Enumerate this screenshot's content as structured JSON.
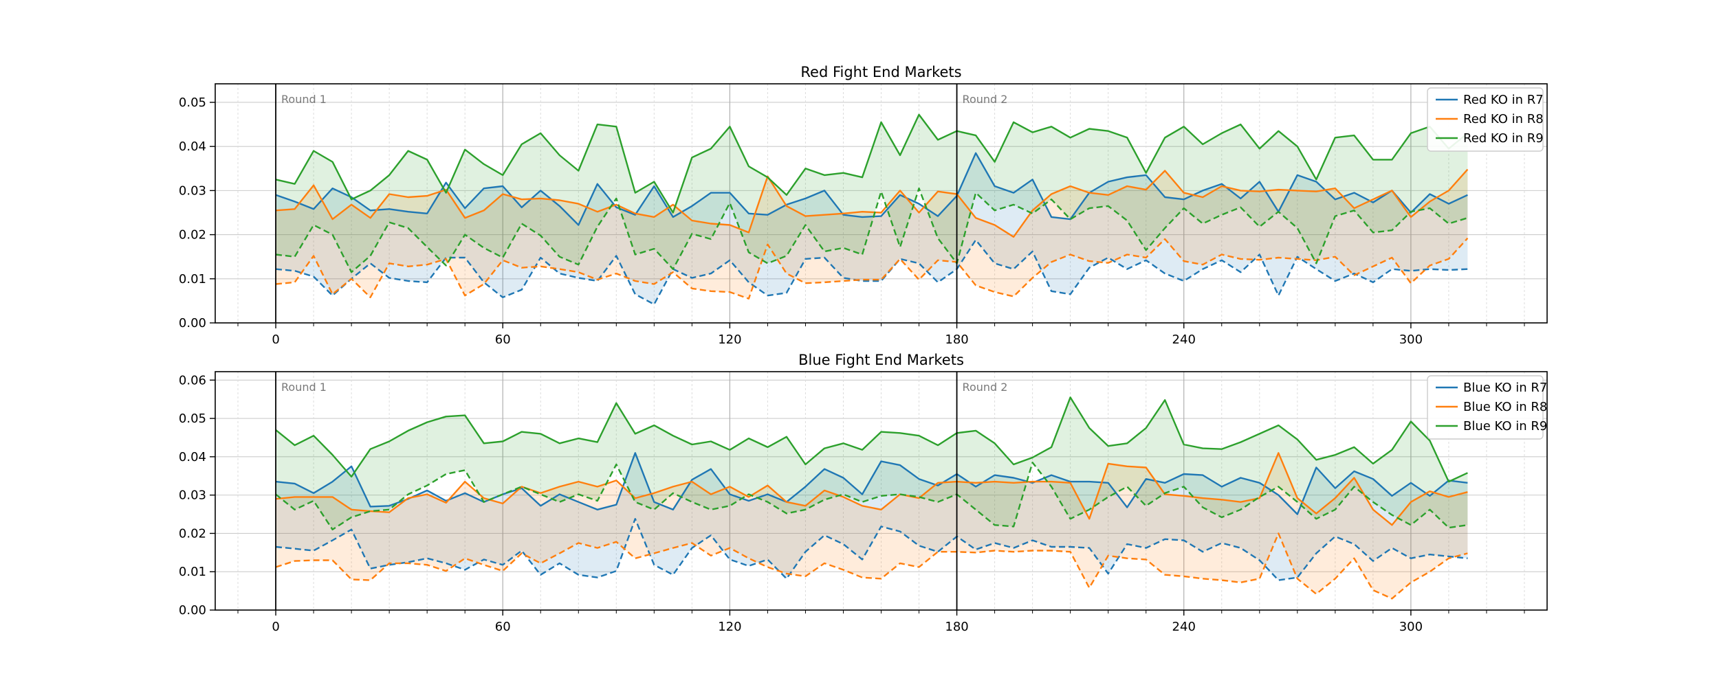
{
  "figure": {
    "background": "#ffffff",
    "accent_colors": {
      "blue": "#1f77b4",
      "orange": "#ff7f0e",
      "green": "#2ca02c"
    }
  },
  "chart_data": [
    {
      "type": "line",
      "title": "Red Fight End Markets",
      "x_start": 0,
      "x_step": 5,
      "xlim": [
        -16,
        336
      ],
      "ylim": [
        0,
        0.0542
      ],
      "grid": true,
      "legend_position": "upper right",
      "xticks": [
        0,
        60,
        120,
        180,
        240,
        300
      ],
      "yticks": [
        "0.00",
        "0.01",
        "0.02",
        "0.03",
        "0.04",
        "0.05"
      ],
      "vlines": [
        {
          "x": 0,
          "label": "Round 1"
        },
        {
          "x": 180,
          "label": "Round 2"
        }
      ],
      "series": [
        {
          "name": "Red KO in R7",
          "color": "#1f77b4",
          "upper": [
            0.029,
            0.0275,
            0.0258,
            0.0305,
            0.0285,
            0.0255,
            0.0258,
            0.0252,
            0.0248,
            0.0318,
            0.026,
            0.0305,
            0.031,
            0.0262,
            0.03,
            0.0265,
            0.0222,
            0.0315,
            0.0262,
            0.0245,
            0.031,
            0.024,
            0.0265,
            0.0295,
            0.0295,
            0.0248,
            0.0245,
            0.0268,
            0.0282,
            0.03,
            0.0245,
            0.024,
            0.0242,
            0.029,
            0.027,
            0.0242,
            0.0288,
            0.0385,
            0.031,
            0.0295,
            0.0325,
            0.024,
            0.0235,
            0.0295,
            0.032,
            0.033,
            0.0335,
            0.0285,
            0.028,
            0.03,
            0.0315,
            0.0282,
            0.032,
            0.0252,
            0.0335,
            0.032,
            0.028,
            0.0295,
            0.0273,
            0.03,
            0.025,
            0.0292,
            0.027,
            0.029
          ],
          "lower": [
            0.0122,
            0.0118,
            0.0105,
            0.0062,
            0.01,
            0.0135,
            0.0102,
            0.0095,
            0.0092,
            0.0148,
            0.0148,
            0.0092,
            0.0058,
            0.0075,
            0.0148,
            0.0112,
            0.0102,
            0.0095,
            0.0152,
            0.0065,
            0.0042,
            0.0122,
            0.0102,
            0.0112,
            0.0142,
            0.0092,
            0.0062,
            0.0068,
            0.0145,
            0.0148,
            0.0102,
            0.0095,
            0.0095,
            0.0145,
            0.0135,
            0.0092,
            0.0122,
            0.0188,
            0.0135,
            0.0122,
            0.0162,
            0.0072,
            0.0065,
            0.0125,
            0.0148,
            0.0122,
            0.0142,
            0.0112,
            0.0095,
            0.0122,
            0.0142,
            0.0115,
            0.0155,
            0.0062,
            0.015,
            0.0122,
            0.0095,
            0.0112,
            0.0092,
            0.0122,
            0.0118,
            0.0122,
            0.012,
            0.0122
          ]
        },
        {
          "name": "Red KO in R8",
          "color": "#ff7f0e",
          "upper": [
            0.0255,
            0.0258,
            0.0312,
            0.0235,
            0.0268,
            0.0238,
            0.0292,
            0.0285,
            0.0288,
            0.0302,
            0.0238,
            0.0255,
            0.0292,
            0.028,
            0.0282,
            0.0278,
            0.027,
            0.0252,
            0.0268,
            0.0248,
            0.024,
            0.0268,
            0.0232,
            0.0225,
            0.0222,
            0.0205,
            0.0332,
            0.0265,
            0.0242,
            0.0245,
            0.0248,
            0.0252,
            0.025,
            0.03,
            0.025,
            0.0298,
            0.0292,
            0.0238,
            0.0222,
            0.0195,
            0.0255,
            0.0292,
            0.031,
            0.0295,
            0.029,
            0.031,
            0.0302,
            0.0345,
            0.0295,
            0.0285,
            0.031,
            0.03,
            0.0298,
            0.0302,
            0.03,
            0.0298,
            0.0305,
            0.026,
            0.028,
            0.03,
            0.024,
            0.0275,
            0.03,
            0.0348
          ],
          "lower": [
            0.0088,
            0.0092,
            0.0152,
            0.0065,
            0.01,
            0.0058,
            0.0135,
            0.0128,
            0.0132,
            0.0145,
            0.0062,
            0.0088,
            0.0142,
            0.0125,
            0.0128,
            0.0122,
            0.0115,
            0.0098,
            0.0112,
            0.0095,
            0.0088,
            0.0115,
            0.0078,
            0.0072,
            0.007,
            0.0055,
            0.0178,
            0.0112,
            0.009,
            0.0092,
            0.0095,
            0.0098,
            0.0098,
            0.0145,
            0.0098,
            0.0142,
            0.0138,
            0.0085,
            0.007,
            0.006,
            0.0102,
            0.0138,
            0.0155,
            0.014,
            0.0136,
            0.0155,
            0.0148,
            0.019,
            0.014,
            0.0132,
            0.0155,
            0.0145,
            0.0143,
            0.0148,
            0.0145,
            0.0142,
            0.015,
            0.0108,
            0.0128,
            0.0148,
            0.009,
            0.013,
            0.0145,
            0.0192
          ]
        },
        {
          "name": "Red KO in R9",
          "color": "#2ca02c",
          "upper": [
            0.0325,
            0.0315,
            0.039,
            0.0365,
            0.028,
            0.03,
            0.0335,
            0.039,
            0.037,
            0.0295,
            0.0393,
            0.036,
            0.0335,
            0.0405,
            0.043,
            0.038,
            0.0345,
            0.045,
            0.0445,
            0.0295,
            0.032,
            0.025,
            0.0375,
            0.0395,
            0.0445,
            0.0355,
            0.033,
            0.029,
            0.035,
            0.0335,
            0.034,
            0.033,
            0.0455,
            0.038,
            0.0472,
            0.0415,
            0.0435,
            0.0425,
            0.0365,
            0.0455,
            0.0432,
            0.0445,
            0.042,
            0.044,
            0.0435,
            0.042,
            0.034,
            0.042,
            0.0445,
            0.0405,
            0.043,
            0.045,
            0.0395,
            0.0435,
            0.04,
            0.0325,
            0.042,
            0.0425,
            0.037,
            0.037,
            0.043,
            0.0445,
            0.0395,
            0.043
          ],
          "lower": [
            0.0155,
            0.015,
            0.0222,
            0.02,
            0.0115,
            0.0152,
            0.0228,
            0.0215,
            0.0172,
            0.013,
            0.02,
            0.017,
            0.0148,
            0.0225,
            0.0198,
            0.015,
            0.0132,
            0.0218,
            0.0282,
            0.0155,
            0.0168,
            0.0122,
            0.0202,
            0.019,
            0.0272,
            0.016,
            0.0135,
            0.0152,
            0.0222,
            0.0162,
            0.017,
            0.0155,
            0.0298,
            0.0172,
            0.0305,
            0.0192,
            0.0135,
            0.0295,
            0.0255,
            0.0268,
            0.0248,
            0.028,
            0.0235,
            0.026,
            0.0265,
            0.0232,
            0.0165,
            0.0215,
            0.026,
            0.0225,
            0.0245,
            0.0262,
            0.0218,
            0.0252,
            0.0215,
            0.0135,
            0.0242,
            0.0255,
            0.0205,
            0.021,
            0.0252,
            0.026,
            0.0225,
            0.0238
          ]
        }
      ]
    },
    {
      "type": "line",
      "title": "Blue Fight End Markets",
      "x_start": 0,
      "x_step": 5,
      "xlim": [
        -16,
        336
      ],
      "ylim": [
        0,
        0.0622
      ],
      "grid": true,
      "legend_position": "upper right",
      "xticks": [
        0,
        60,
        120,
        180,
        240,
        300
      ],
      "yticks": [
        "0.00",
        "0.01",
        "0.02",
        "0.03",
        "0.04",
        "0.05",
        "0.06"
      ],
      "vlines": [
        {
          "x": 0,
          "label": "Round 1"
        },
        {
          "x": 180,
          "label": "Round 2"
        }
      ],
      "series": [
        {
          "name": "Blue KO in R7",
          "color": "#1f77b4",
          "upper": [
            0.0335,
            0.033,
            0.0305,
            0.0335,
            0.0375,
            0.027,
            0.0272,
            0.029,
            0.0312,
            0.0285,
            0.0305,
            0.0282,
            0.0302,
            0.0318,
            0.0272,
            0.0302,
            0.0282,
            0.0262,
            0.0275,
            0.041,
            0.0282,
            0.0262,
            0.034,
            0.0368,
            0.0302,
            0.0285,
            0.0302,
            0.0282,
            0.0322,
            0.0368,
            0.0345,
            0.0302,
            0.0388,
            0.0378,
            0.0342,
            0.0325,
            0.0355,
            0.0322,
            0.0352,
            0.0345,
            0.0332,
            0.0352,
            0.0335,
            0.0335,
            0.0332,
            0.0268,
            0.0342,
            0.0332,
            0.0355,
            0.0352,
            0.0322,
            0.0345,
            0.0332,
            0.03,
            0.025,
            0.0372,
            0.0318,
            0.0362,
            0.0342,
            0.0298,
            0.0332,
            0.0298,
            0.0338,
            0.0332
          ],
          "lower": [
            0.0165,
            0.016,
            0.0155,
            0.0182,
            0.021,
            0.0108,
            0.0118,
            0.0125,
            0.0135,
            0.0122,
            0.0105,
            0.0132,
            0.0118,
            0.0155,
            0.0092,
            0.0122,
            0.0092,
            0.0085,
            0.0102,
            0.0238,
            0.0118,
            0.0092,
            0.0162,
            0.0195,
            0.0132,
            0.0115,
            0.0132,
            0.0082,
            0.0152,
            0.0195,
            0.0172,
            0.0132,
            0.0218,
            0.0205,
            0.0168,
            0.0152,
            0.0192,
            0.0158,
            0.0175,
            0.0162,
            0.0182,
            0.0165,
            0.0165,
            0.0162,
            0.0095,
            0.0172,
            0.0162,
            0.0185,
            0.0182,
            0.0152,
            0.0175,
            0.0162,
            0.013,
            0.0078,
            0.0085,
            0.0148,
            0.0192,
            0.0172,
            0.0128,
            0.0162,
            0.0135,
            0.0145,
            0.014,
            0.0135
          ]
        },
        {
          "name": "Blue KO in R8",
          "color": "#ff7f0e",
          "upper": [
            0.029,
            0.0295,
            0.0295,
            0.0295,
            0.0262,
            0.0258,
            0.0255,
            0.0292,
            0.0302,
            0.028,
            0.0335,
            0.0292,
            0.0278,
            0.0322,
            0.0305,
            0.0322,
            0.0335,
            0.0322,
            0.0338,
            0.0292,
            0.0305,
            0.0322,
            0.0335,
            0.0302,
            0.0322,
            0.0295,
            0.0325,
            0.0282,
            0.0272,
            0.0312,
            0.0295,
            0.0272,
            0.0262,
            0.0302,
            0.0292,
            0.0332,
            0.0335,
            0.0332,
            0.0335,
            0.0332,
            0.0335,
            0.0335,
            0.0332,
            0.0238,
            0.0382,
            0.0375,
            0.0372,
            0.0302,
            0.0298,
            0.0292,
            0.0288,
            0.0282,
            0.0292,
            0.041,
            0.0292,
            0.0252,
            0.0292,
            0.0345,
            0.0262,
            0.0222,
            0.0282,
            0.031,
            0.0295,
            0.0308
          ],
          "lower": [
            0.0112,
            0.0128,
            0.013,
            0.013,
            0.008,
            0.0078,
            0.0122,
            0.0122,
            0.0118,
            0.0102,
            0.0135,
            0.0118,
            0.0102,
            0.0148,
            0.0122,
            0.0148,
            0.0175,
            0.0162,
            0.0178,
            0.0135,
            0.0148,
            0.0162,
            0.0175,
            0.0142,
            0.0162,
            0.0135,
            0.0112,
            0.0095,
            0.0088,
            0.0122,
            0.0105,
            0.0085,
            0.0082,
            0.0122,
            0.0112,
            0.0152,
            0.0152,
            0.015,
            0.0155,
            0.0152,
            0.0155,
            0.0155,
            0.0152,
            0.0058,
            0.0142,
            0.0135,
            0.0132,
            0.0092,
            0.0088,
            0.0082,
            0.0078,
            0.0072,
            0.0082,
            0.02,
            0.0082,
            0.0042,
            0.0082,
            0.0135,
            0.0052,
            0.003,
            0.0072,
            0.01,
            0.0135,
            0.0148
          ]
        },
        {
          "name": "Blue KO in R9",
          "color": "#2ca02c",
          "upper": [
            0.047,
            0.043,
            0.0455,
            0.0405,
            0.0348,
            0.042,
            0.044,
            0.0468,
            0.049,
            0.0505,
            0.0508,
            0.0435,
            0.044,
            0.0465,
            0.046,
            0.0435,
            0.0448,
            0.0438,
            0.054,
            0.046,
            0.0482,
            0.0455,
            0.0432,
            0.044,
            0.0418,
            0.0448,
            0.0425,
            0.0452,
            0.038,
            0.0422,
            0.0435,
            0.0418,
            0.0465,
            0.0462,
            0.0455,
            0.043,
            0.0462,
            0.0468,
            0.0435,
            0.038,
            0.0398,
            0.0425,
            0.0555,
            0.0475,
            0.0428,
            0.0435,
            0.0475,
            0.0548,
            0.0432,
            0.0422,
            0.042,
            0.0438,
            0.046,
            0.0482,
            0.0445,
            0.0392,
            0.0405,
            0.0425,
            0.0382,
            0.0418,
            0.0492,
            0.0442,
            0.0335,
            0.0358
          ],
          "lower": [
            0.0302,
            0.0262,
            0.0285,
            0.021,
            0.0242,
            0.0258,
            0.0262,
            0.0302,
            0.0325,
            0.0355,
            0.0365,
            0.0282,
            0.0302,
            0.0322,
            0.0302,
            0.0282,
            0.0302,
            0.0285,
            0.038,
            0.0282,
            0.0262,
            0.0305,
            0.0282,
            0.0262,
            0.0272,
            0.0302,
            0.0282,
            0.0252,
            0.0262,
            0.0288,
            0.0302,
            0.0282,
            0.0298,
            0.0302,
            0.0295,
            0.0282,
            0.0302,
            0.0262,
            0.0222,
            0.0218,
            0.0385,
            0.0322,
            0.0238,
            0.0262,
            0.0295,
            0.0322,
            0.0272,
            0.0305,
            0.0322,
            0.0268,
            0.0242,
            0.0262,
            0.0295,
            0.0322,
            0.0282,
            0.0238,
            0.0262,
            0.0322,
            0.0282,
            0.0248,
            0.0222,
            0.0262,
            0.0215,
            0.0222
          ]
        }
      ]
    }
  ]
}
